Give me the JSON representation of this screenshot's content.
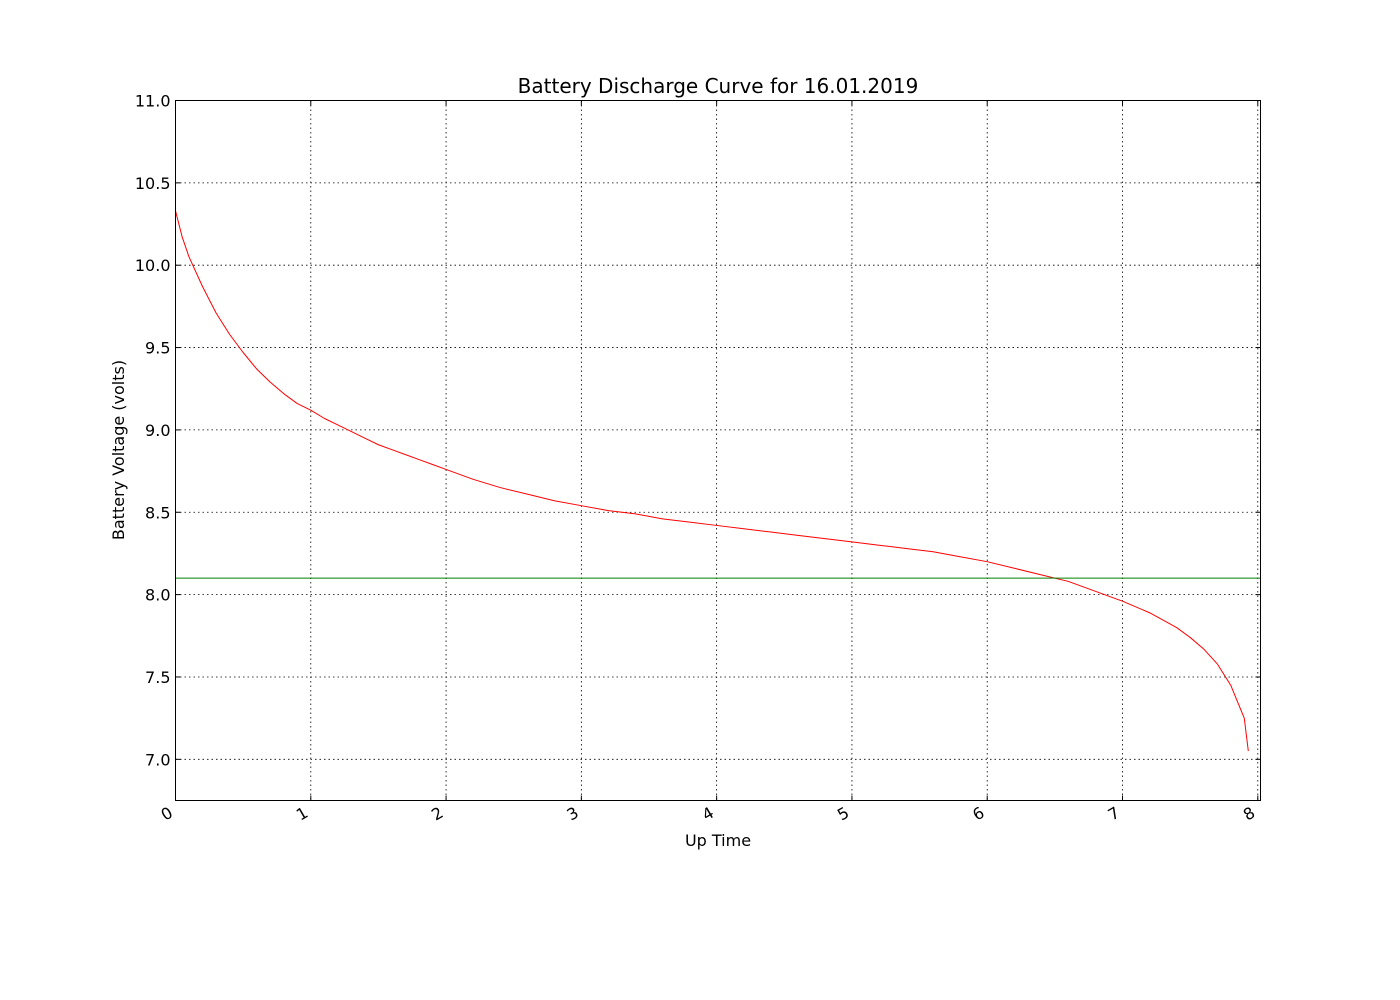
{
  "chart_data": {
    "type": "line",
    "title": "Battery Discharge Curve for 16.01.2019",
    "xlabel": "Up Time",
    "ylabel": "Battery Voltage (volts)",
    "xlim": [
      0,
      8.02
    ],
    "ylim": [
      6.75,
      11.0
    ],
    "xticks": [
      0,
      1,
      2,
      3,
      4,
      5,
      6,
      7,
      8
    ],
    "xtick_labels": [
      "0",
      "1",
      "2",
      "3",
      "4",
      "5",
      "6",
      "7",
      "8"
    ],
    "yticks": [
      7.0,
      7.5,
      8.0,
      8.5,
      9.0,
      9.5,
      10.0,
      10.5,
      11.0
    ],
    "ytick_labels": [
      "7.0",
      "7.5",
      "8.0",
      "8.5",
      "9.0",
      "9.5",
      "10.0",
      "10.5",
      "11.0"
    ],
    "grid": true,
    "series": [
      {
        "color": "#ff0000",
        "x": [
          0,
          0.05,
          0.1,
          0.2,
          0.3,
          0.4,
          0.5,
          0.6,
          0.7,
          0.8,
          0.9,
          1.0,
          1.1,
          1.2,
          1.3,
          1.4,
          1.5,
          1.6,
          1.7,
          1.8,
          1.9,
          2.0,
          2.2,
          2.4,
          2.6,
          2.8,
          3.0,
          3.2,
          3.4,
          3.6,
          3.8,
          4.0,
          4.2,
          4.4,
          4.6,
          4.8,
          5.0,
          5.2,
          5.4,
          5.6,
          5.8,
          6.0,
          6.2,
          6.4,
          6.6,
          6.8,
          7.0,
          7.2,
          7.4,
          7.5,
          7.6,
          7.7,
          7.8,
          7.85,
          7.9,
          7.93
        ],
        "y": [
          10.33,
          10.17,
          10.05,
          9.87,
          9.71,
          9.58,
          9.47,
          9.37,
          9.29,
          9.22,
          9.16,
          9.12,
          9.07,
          9.03,
          8.99,
          8.95,
          8.91,
          8.88,
          8.85,
          8.82,
          8.79,
          8.76,
          8.7,
          8.65,
          8.61,
          8.57,
          8.54,
          8.51,
          8.49,
          8.46,
          8.44,
          8.42,
          8.4,
          8.38,
          8.36,
          8.34,
          8.32,
          8.3,
          8.28,
          8.26,
          8.23,
          8.2,
          8.16,
          8.12,
          8.08,
          8.02,
          7.96,
          7.89,
          7.8,
          7.74,
          7.67,
          7.58,
          7.45,
          7.35,
          7.25,
          7.05
        ]
      },
      {
        "color": "#008000",
        "x": [
          0,
          8.02
        ],
        "y": [
          8.1,
          8.1
        ]
      }
    ]
  }
}
